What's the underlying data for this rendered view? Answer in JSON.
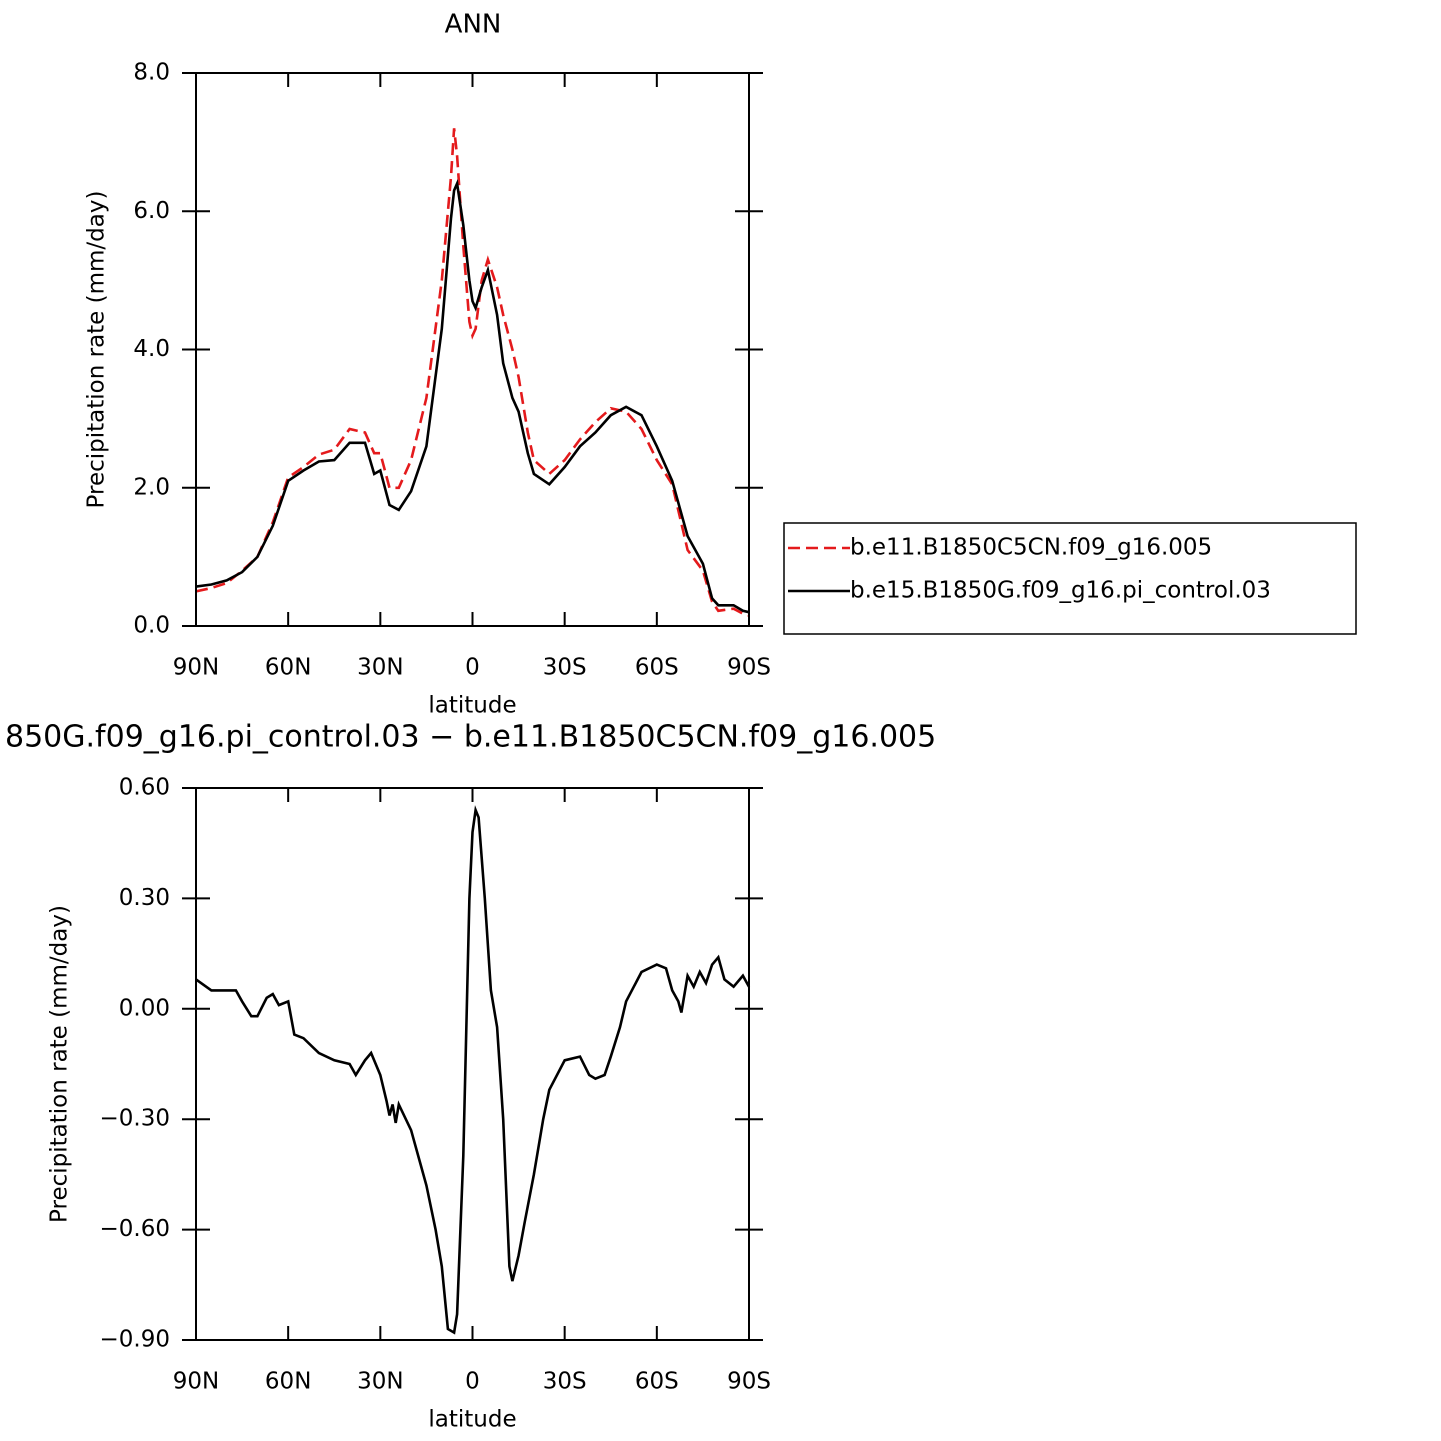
{
  "chart_data": [
    {
      "type": "line",
      "title": "ANN",
      "xlabel": "latitude",
      "ylabel": "Precipitation rate (mm/day)",
      "x": [
        90,
        85,
        80,
        75,
        70,
        65,
        60,
        55,
        50,
        45,
        40,
        35,
        32,
        30,
        27,
        24,
        20,
        15,
        10,
        7,
        6,
        5,
        3,
        1,
        0,
        -1,
        -3,
        -5,
        -8,
        -10,
        -13,
        -15,
        -18,
        -20,
        -25,
        -30,
        -35,
        -40,
        -45,
        -50,
        -55,
        -60,
        -65,
        -70,
        -75,
        -78,
        -80,
        -85,
        -88,
        -90
      ],
      "series": [
        {
          "name": "b.e11.B1850C5CN.f09_g16.005",
          "color": "#e41a1c",
          "dashed": true,
          "values": [
            0.5,
            0.55,
            0.62,
            0.8,
            1.0,
            1.5,
            2.15,
            2.3,
            2.48,
            2.55,
            2.85,
            2.8,
            2.5,
            2.5,
            2.0,
            2.0,
            2.4,
            3.3,
            5.0,
            6.5,
            7.2,
            6.8,
            5.5,
            4.4,
            4.2,
            4.3,
            5.0,
            5.3,
            4.9,
            4.5,
            4.0,
            3.6,
            2.8,
            2.4,
            2.2,
            2.4,
            2.7,
            2.95,
            3.15,
            3.1,
            2.85,
            2.4,
            2.05,
            1.1,
            0.8,
            0.35,
            0.22,
            0.25,
            0.18,
            0.15
          ]
        },
        {
          "name": "b.e15.B1850G.f09_g16.pi_control.03",
          "color": "#000000",
          "dashed": false,
          "values": [
            0.57,
            0.6,
            0.66,
            0.78,
            1.0,
            1.45,
            2.1,
            2.25,
            2.38,
            2.4,
            2.65,
            2.65,
            2.2,
            2.25,
            1.75,
            1.68,
            1.95,
            2.6,
            4.3,
            5.9,
            6.3,
            6.4,
            5.8,
            5.0,
            4.7,
            4.6,
            4.9,
            5.15,
            4.5,
            3.8,
            3.3,
            3.1,
            2.5,
            2.2,
            2.05,
            2.3,
            2.6,
            2.8,
            3.05,
            3.17,
            3.05,
            2.6,
            2.1,
            1.3,
            0.9,
            0.4,
            0.3,
            0.3,
            0.22,
            0.2
          ]
        }
      ],
      "xlim": [
        90,
        -90
      ],
      "xticks": [
        {
          "value": 90,
          "label": "90N"
        },
        {
          "value": 60,
          "label": "60N"
        },
        {
          "value": 30,
          "label": "30N"
        },
        0,
        {
          "value": -30,
          "label": "30S"
        },
        {
          "value": -60,
          "label": "60S"
        },
        {
          "value": -90,
          "label": "90S"
        }
      ],
      "ylim": [
        0,
        8
      ],
      "yticks": [
        {
          "value": 0,
          "label": "0.0"
        },
        {
          "value": 2,
          "label": "2.0"
        },
        {
          "value": 4,
          "label": "4.0"
        },
        {
          "value": 6,
          "label": "6.0"
        },
        {
          "value": 8,
          "label": "8.0"
        }
      ],
      "legend": "right"
    },
    {
      "type": "line",
      "title": "850G.f09_g16.pi_control.03 − b.e11.B1850C5CN.f09_g16.005",
      "xlabel": "latitude",
      "ylabel": "Precipitation rate (mm/day)",
      "x": [
        90,
        85,
        80,
        77,
        75,
        72,
        70,
        67,
        65,
        63,
        60,
        58,
        55,
        50,
        45,
        40,
        38,
        35,
        33,
        30,
        28,
        27,
        26,
        25,
        24,
        20,
        17,
        15,
        12,
        10,
        8,
        6,
        5,
        3,
        1,
        0,
        -1,
        -2,
        -4,
        -6,
        -8,
        -10,
        -12,
        -13,
        -15,
        -17,
        -20,
        -23,
        -25,
        -30,
        -35,
        -38,
        -40,
        -43,
        -45,
        -48,
        -50,
        -55,
        -60,
        -63,
        -65,
        -67,
        -68,
        -70,
        -72,
        -74,
        -76,
        -78,
        -80,
        -82,
        -85,
        -88,
        -90
      ],
      "color": "#000000",
      "values": [
        0.08,
        0.05,
        0.05,
        0.05,
        0.02,
        -0.02,
        -0.02,
        0.03,
        0.04,
        0.01,
        0.02,
        -0.07,
        -0.08,
        -0.12,
        -0.14,
        -0.15,
        -0.18,
        -0.14,
        -0.12,
        -0.18,
        -0.25,
        -0.29,
        -0.26,
        -0.31,
        -0.26,
        -0.33,
        -0.42,
        -0.48,
        -0.6,
        -0.7,
        -0.87,
        -0.88,
        -0.83,
        -0.4,
        0.3,
        0.48,
        0.54,
        0.52,
        0.3,
        0.05,
        -0.05,
        -0.3,
        -0.7,
        -0.74,
        -0.67,
        -0.58,
        -0.45,
        -0.3,
        -0.22,
        -0.14,
        -0.13,
        -0.18,
        -0.19,
        -0.18,
        -0.13,
        -0.05,
        0.02,
        0.1,
        0.12,
        0.11,
        0.05,
        0.02,
        -0.01,
        0.09,
        0.06,
        0.1,
        0.07,
        0.12,
        0.14,
        0.08,
        0.06,
        0.09,
        0.06
      ],
      "xlim": [
        90,
        -90
      ],
      "xticks": [
        {
          "value": 90,
          "label": "90N"
        },
        {
          "value": 60,
          "label": "60N"
        },
        {
          "value": 30,
          "label": "30N"
        },
        0,
        {
          "value": -30,
          "label": "30S"
        },
        {
          "value": -60,
          "label": "60S"
        },
        {
          "value": -90,
          "label": "90S"
        }
      ],
      "ylim": [
        -0.9,
        0.6
      ],
      "yticks": [
        {
          "value": 0.6,
          "label": "0.60"
        },
        {
          "value": 0.3,
          "label": "0.30"
        },
        {
          "value": 0,
          "label": "0.00"
        },
        {
          "value": -0.3,
          "label": "−0.30"
        },
        {
          "value": -0.6,
          "label": "−0.60"
        },
        {
          "value": -0.9,
          "label": "−0.90"
        }
      ]
    }
  ]
}
